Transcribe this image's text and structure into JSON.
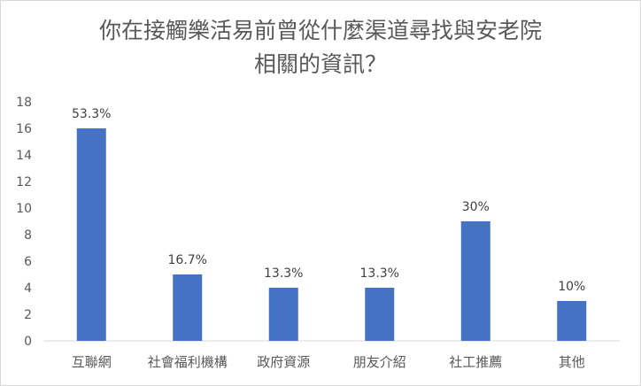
{
  "chart_data": {
    "type": "bar",
    "title_lines": [
      "你在接觸樂活易前曾從什麼渠道尋找與安老院",
      "相關的資訊？"
    ],
    "categories": [
      "互聯網",
      "社會福利機構",
      "政府資源",
      "朋友介紹",
      "社工推薦",
      "其他"
    ],
    "values": [
      16,
      5,
      4,
      4,
      9,
      3
    ],
    "data_labels": [
      "53.3%",
      "16.7%",
      "13.3%",
      "13.3%",
      "30%",
      "10%"
    ],
    "ylim": [
      0,
      18
    ],
    "yticks": [
      0,
      2,
      4,
      6,
      8,
      10,
      12,
      14,
      16,
      18
    ],
    "grid": false,
    "bar_color": "#4472c4",
    "axis_color": "#d9d9d9"
  }
}
